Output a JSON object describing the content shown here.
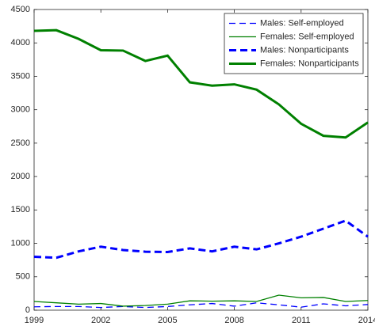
{
  "chart_data": {
    "type": "line",
    "x": [
      1999,
      2000,
      2001,
      2002,
      2003,
      2004,
      2005,
      2006,
      2007,
      2008,
      2009,
      2010,
      2011,
      2012,
      2013,
      2014
    ],
    "series": [
      {
        "name": "Males: Self-employed",
        "color": "#0000ff",
        "line_style": "dashed",
        "weight": "thin",
        "values": [
          50,
          55,
          55,
          40,
          55,
          40,
          55,
          80,
          100,
          60,
          110,
          80,
          45,
          95,
          65,
          85
        ]
      },
      {
        "name": "Females: Self-employed",
        "color": "#008000",
        "line_style": "solid",
        "weight": "thin",
        "values": [
          130,
          110,
          90,
          100,
          60,
          70,
          90,
          140,
          135,
          140,
          130,
          225,
          185,
          190,
          130,
          145
        ]
      },
      {
        "name": "Males: Nonparticipants",
        "color": "#0000ff",
        "line_style": "dashed",
        "weight": "thick",
        "values": [
          800,
          785,
          880,
          950,
          900,
          875,
          870,
          925,
          880,
          950,
          910,
          1000,
          1100,
          1220,
          1340,
          1100
        ]
      },
      {
        "name": "Females: Nonparticipants",
        "color": "#008000",
        "line_style": "solid",
        "weight": "thick",
        "values": [
          4180,
          4190,
          4060,
          3890,
          3885,
          3730,
          3810,
          3410,
          3360,
          3380,
          3300,
          3080,
          2790,
          2610,
          2585,
          2810
        ]
      }
    ],
    "xlim": [
      1999,
      2014
    ],
    "xticks": [
      1999,
      2002,
      2005,
      2008,
      2011,
      2014
    ],
    "ylim": [
      0,
      4500
    ],
    "yticks": [
      0,
      500,
      1000,
      1500,
      2000,
      2500,
      3000,
      3500,
      4000,
      4500
    ],
    "legend": "upper right",
    "grid": false
  }
}
